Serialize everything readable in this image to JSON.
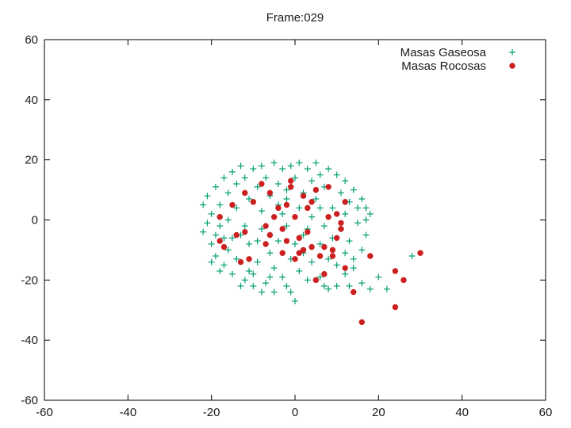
{
  "chart_data": {
    "type": "scatter",
    "title": "Frame:029",
    "xlabel": "",
    "ylabel": "",
    "xlim": [
      -60,
      60
    ],
    "ylim": [
      -60,
      60
    ],
    "xticks": [
      -60,
      -40,
      -20,
      0,
      20,
      40,
      60
    ],
    "yticks": [
      -60,
      -40,
      -20,
      0,
      20,
      40,
      60
    ],
    "grid": false,
    "legend_position": "top-right",
    "series": [
      {
        "name": "Masas Gaseosa",
        "marker": "plus",
        "color": "#009e73",
        "points": [
          [
            -22,
            5
          ],
          [
            -22,
            -4
          ],
          [
            -21,
            8
          ],
          [
            -20,
            -8
          ],
          [
            -20,
            2
          ],
          [
            -19,
            11
          ],
          [
            -19,
            -12
          ],
          [
            -18,
            5
          ],
          [
            -18,
            -2
          ],
          [
            -17,
            14
          ],
          [
            -17,
            -15
          ],
          [
            -16,
            9
          ],
          [
            -16,
            -10
          ],
          [
            -16,
            0
          ],
          [
            -15,
            -18
          ],
          [
            -15,
            16
          ],
          [
            -14,
            12
          ],
          [
            -14,
            -13
          ],
          [
            -14,
            4
          ],
          [
            -13,
            -5
          ],
          [
            -13,
            18
          ],
          [
            -12,
            -20
          ],
          [
            -12,
            14
          ],
          [
            -11,
            -8
          ],
          [
            -11,
            7
          ],
          [
            -10,
            17
          ],
          [
            -10,
            -18
          ],
          [
            -10,
            -22
          ],
          [
            -9,
            11
          ],
          [
            -9,
            -14
          ],
          [
            -8,
            18
          ],
          [
            -8,
            -3
          ],
          [
            -8,
            3
          ],
          [
            -7,
            -21
          ],
          [
            -7,
            14
          ],
          [
            -6,
            -11
          ],
          [
            -6,
            8
          ],
          [
            -5,
            19
          ],
          [
            -5,
            -24
          ],
          [
            -5,
            -16
          ],
          [
            -4,
            12
          ],
          [
            -4,
            -7
          ],
          [
            -3,
            17
          ],
          [
            -3,
            -19
          ],
          [
            -3,
            2
          ],
          [
            -2,
            -2
          ],
          [
            -2,
            10
          ],
          [
            -1,
            18
          ],
          [
            -1,
            -13
          ],
          [
            -1,
            -24
          ],
          [
            0,
            -27
          ],
          [
            0,
            14
          ],
          [
            0,
            -8
          ],
          [
            1,
            19
          ],
          [
            1,
            -17
          ],
          [
            1,
            4
          ],
          [
            2,
            9
          ],
          [
            2,
            -11
          ],
          [
            3,
            17
          ],
          [
            3,
            -3
          ],
          [
            3,
            -20
          ],
          [
            4,
            13
          ],
          [
            4,
            -14
          ],
          [
            5,
            19
          ],
          [
            5,
            7
          ],
          [
            6,
            -8
          ],
          [
            6,
            -19
          ],
          [
            6,
            15
          ],
          [
            7,
            11
          ],
          [
            7,
            -2
          ],
          [
            8,
            17
          ],
          [
            8,
            -13
          ],
          [
            8,
            -23
          ],
          [
            9,
            4
          ],
          [
            9,
            -6
          ],
          [
            10,
            15
          ],
          [
            10,
            -22
          ],
          [
            10,
            -15
          ],
          [
            11,
            9
          ],
          [
            11,
            -3
          ],
          [
            12,
            13
          ],
          [
            12,
            -11
          ],
          [
            12,
            2
          ],
          [
            13,
            -7
          ],
          [
            13,
            6
          ],
          [
            14,
            10
          ],
          [
            14,
            -16
          ],
          [
            15,
            -1
          ],
          [
            15,
            4
          ],
          [
            16,
            -10
          ],
          [
            16,
            7
          ],
          [
            17,
            0
          ],
          [
            17,
            -5
          ],
          [
            17,
            4
          ],
          [
            18,
            2
          ],
          [
            16,
            -21
          ],
          [
            13,
            -22
          ],
          [
            18,
            -23
          ],
          [
            20,
            -19
          ],
          [
            22,
            -23
          ],
          [
            28,
            -12
          ],
          [
            -9,
            -7
          ],
          [
            -12,
            -2
          ],
          [
            -6,
            -5
          ],
          [
            -4,
            5
          ],
          [
            -2,
            7
          ],
          [
            2,
            -5
          ],
          [
            4,
            1
          ],
          [
            6,
            4
          ],
          [
            -15,
            -6
          ],
          [
            -17,
            -6
          ],
          [
            -20,
            -14
          ],
          [
            -18,
            -17
          ],
          [
            -13,
            -22
          ],
          [
            -8,
            -24
          ],
          [
            -2,
            -22
          ],
          [
            7,
            -22
          ],
          [
            12,
            -18
          ],
          [
            14,
            -13
          ],
          [
            -21,
            -1
          ],
          [
            -19,
            -5
          ],
          [
            -11,
            -17
          ],
          [
            -6,
            -19
          ]
        ]
      },
      {
        "name": "Masas Rocosas",
        "marker": "star",
        "color": "#cc2020",
        "points": [
          [
            -18,
            1
          ],
          [
            -18,
            -7
          ],
          [
            -17,
            -9
          ],
          [
            -15,
            5
          ],
          [
            -14,
            -5
          ],
          [
            -13,
            -14
          ],
          [
            -12,
            -4
          ],
          [
            -12,
            9
          ],
          [
            -11,
            -13
          ],
          [
            -10,
            6
          ],
          [
            -8,
            12
          ],
          [
            -7,
            -2
          ],
          [
            -7,
            -8
          ],
          [
            -6,
            9
          ],
          [
            -6,
            -5
          ],
          [
            -5,
            1
          ],
          [
            -4,
            4
          ],
          [
            -3,
            -11
          ],
          [
            -3,
            -3
          ],
          [
            -2,
            5
          ],
          [
            -2,
            -7
          ],
          [
            -1,
            11
          ],
          [
            -1,
            13
          ],
          [
            0,
            -13
          ],
          [
            0,
            1
          ],
          [
            1,
            -6
          ],
          [
            1,
            -11
          ],
          [
            2,
            -10
          ],
          [
            2,
            8
          ],
          [
            3,
            -4
          ],
          [
            3,
            4
          ],
          [
            4,
            -9
          ],
          [
            4,
            6
          ],
          [
            5,
            10
          ],
          [
            5,
            -20
          ],
          [
            6,
            -12
          ],
          [
            7,
            -18
          ],
          [
            7,
            -9
          ],
          [
            8,
            1
          ],
          [
            8,
            11
          ],
          [
            9,
            -10
          ],
          [
            9,
            -12
          ],
          [
            10,
            2
          ],
          [
            10,
            -6
          ],
          [
            11,
            -1
          ],
          [
            11,
            -3
          ],
          [
            12,
            6
          ],
          [
            12,
            -16
          ],
          [
            14,
            -24
          ],
          [
            16,
            -34
          ],
          [
            18,
            -12
          ],
          [
            24,
            -17
          ],
          [
            24,
            -29
          ],
          [
            26,
            -20
          ],
          [
            30,
            -11
          ]
        ]
      }
    ]
  }
}
